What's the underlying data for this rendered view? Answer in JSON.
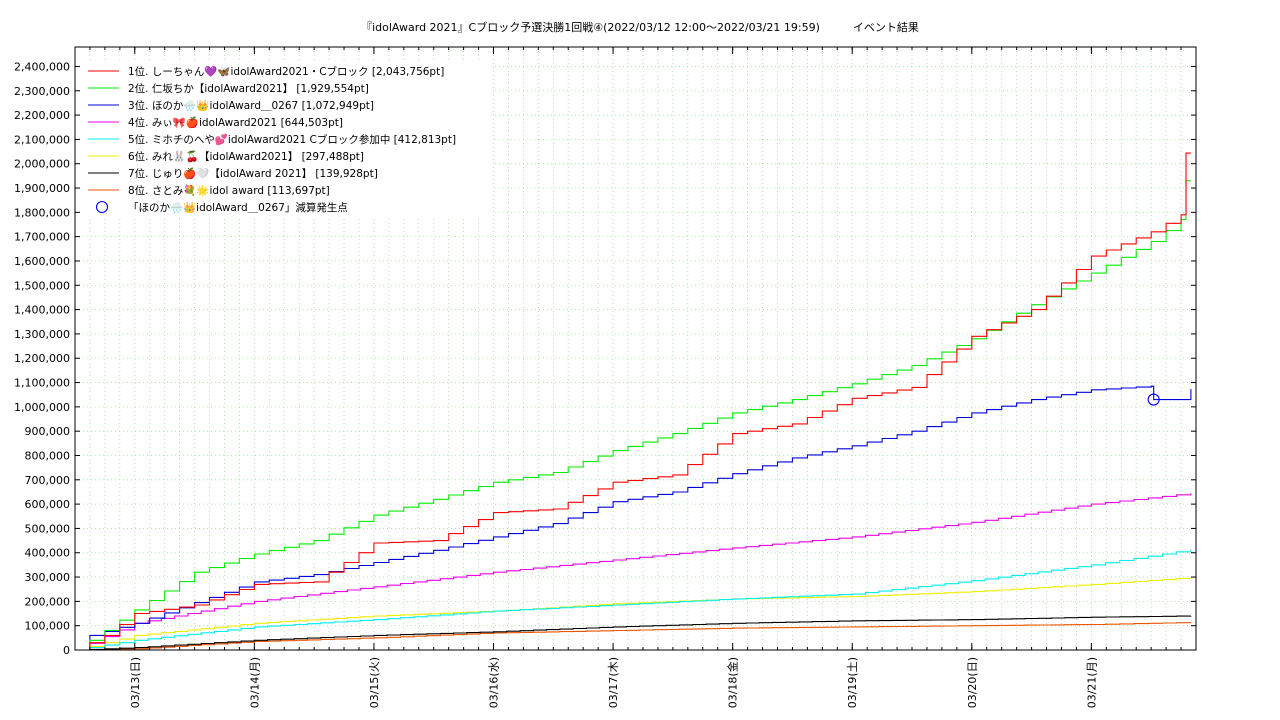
{
  "chart_data": {
    "type": "line",
    "title": "『idolAward 2021』Cブロック予選決勝1回戦④(2022/03/12 12:00～2022/03/21 19:59)　　　イベント結果",
    "xlabel": "",
    "ylabel": "",
    "ylim": [
      0,
      2480000
    ],
    "xlim": [
      "2022-03-12 12:00",
      "2022-03-21 21:00"
    ],
    "grid": true,
    "legend_position": "top-left",
    "x_tick_labels": [
      "03/13(日)",
      "03/14(月)",
      "03/15(火)",
      "03/16(水)",
      "03/17(木)",
      "03/18(金)",
      "03/19(土)",
      "03/20(日)",
      "03/21(月)"
    ],
    "x_tick_dates": [
      "2022-03-13",
      "2022-03-14",
      "2022-03-15",
      "2022-03-16",
      "2022-03-17",
      "2022-03-18",
      "2022-03-19",
      "2022-03-20",
      "2022-03-21"
    ],
    "y_ticks": [
      0,
      100000,
      200000,
      300000,
      400000,
      500000,
      600000,
      700000,
      800000,
      900000,
      1000000,
      1100000,
      1200000,
      1300000,
      1400000,
      1500000,
      1600000,
      1700000,
      1800000,
      1900000,
      2000000,
      2100000,
      2200000,
      2300000,
      2400000
    ],
    "y_tick_labels": [
      "0",
      "100,000",
      "200,000",
      "300,000",
      "400,000",
      "500,000",
      "600,000",
      "700,000",
      "800,000",
      "900,000",
      "1,000,000",
      "1,100,000",
      "1,200,000",
      "1,300,000",
      "1,400,000",
      "1,500,000",
      "1,600,000",
      "1,700,000",
      "1,800,000",
      "1,900,000",
      "2,000,000",
      "2,100,000",
      "2,200,000",
      "2,300,000",
      "2,400,000"
    ],
    "series": [
      {
        "name": "1位. しーちゃん💜🦋idolAward2021・Cブロック [2,043,756pt]",
        "color": "#ff0000",
        "points": [
          [
            "2022-03-12 12:00",
            0
          ],
          [
            "2022-03-12 18:00",
            60000
          ],
          [
            "2022-03-13 00:00",
            150000
          ],
          [
            "2022-03-13 12:00",
            185000
          ],
          [
            "2022-03-14 00:00",
            270000
          ],
          [
            "2022-03-14 12:00",
            280000
          ],
          [
            "2022-03-15 00:00",
            440000
          ],
          [
            "2022-03-15 12:00",
            450000
          ],
          [
            "2022-03-16 00:00",
            565000
          ],
          [
            "2022-03-16 12:00",
            580000
          ],
          [
            "2022-03-17 00:00",
            690000
          ],
          [
            "2022-03-17 12:00",
            720000
          ],
          [
            "2022-03-18 00:00",
            890000
          ],
          [
            "2022-03-18 12:00",
            930000
          ],
          [
            "2022-03-19 00:00",
            1035000
          ],
          [
            "2022-03-19 12:00",
            1080000
          ],
          [
            "2022-03-20 00:00",
            1290000
          ],
          [
            "2022-03-20 12:00",
            1400000
          ],
          [
            "2022-03-21 00:00",
            1620000
          ],
          [
            "2022-03-21 12:00",
            1720000
          ],
          [
            "2022-03-21 18:00",
            1790000
          ],
          [
            "2022-03-21 19:00",
            2043756
          ],
          [
            "2022-03-21 19:59",
            2043756
          ]
        ]
      },
      {
        "name": "2位. 仁坂ちか【idolAward2021】 [1,929,554pt]",
        "color": "#00ee00",
        "points": [
          [
            "2022-03-12 12:00",
            0
          ],
          [
            "2022-03-12 18:00",
            80000
          ],
          [
            "2022-03-13 00:00",
            165000
          ],
          [
            "2022-03-13 12:00",
            320000
          ],
          [
            "2022-03-14 00:00",
            395000
          ],
          [
            "2022-03-14 12:00",
            450000
          ],
          [
            "2022-03-15 00:00",
            555000
          ],
          [
            "2022-03-15 12:00",
            620000
          ],
          [
            "2022-03-16 00:00",
            690000
          ],
          [
            "2022-03-16 12:00",
            730000
          ],
          [
            "2022-03-17 00:00",
            820000
          ],
          [
            "2022-03-17 12:00",
            890000
          ],
          [
            "2022-03-18 00:00",
            975000
          ],
          [
            "2022-03-18 12:00",
            1030000
          ],
          [
            "2022-03-19 00:00",
            1095000
          ],
          [
            "2022-03-19 12:00",
            1170000
          ],
          [
            "2022-03-20 00:00",
            1280000
          ],
          [
            "2022-03-20 12:00",
            1420000
          ],
          [
            "2022-03-21 00:00",
            1550000
          ],
          [
            "2022-03-21 12:00",
            1680000
          ],
          [
            "2022-03-21 18:00",
            1770000
          ],
          [
            "2022-03-21 19:00",
            1929554
          ],
          [
            "2022-03-21 19:59",
            1929554
          ]
        ]
      },
      {
        "name": "3位. ほのか🌧️👑idolAward＿0267 [1,072,949pt]",
        "color": "#0000dd",
        "points": [
          [
            "2022-03-12 12:00",
            0
          ],
          [
            "2022-03-12 15:00",
            60000
          ],
          [
            "2022-03-13 00:00",
            110000
          ],
          [
            "2022-03-13 12:00",
            195000
          ],
          [
            "2022-03-14 00:00",
            280000
          ],
          [
            "2022-03-14 12:00",
            310000
          ],
          [
            "2022-03-15 00:00",
            360000
          ],
          [
            "2022-03-15 12:00",
            410000
          ],
          [
            "2022-03-16 00:00",
            465000
          ],
          [
            "2022-03-16 12:00",
            520000
          ],
          [
            "2022-03-17 00:00",
            610000
          ],
          [
            "2022-03-17 12:00",
            650000
          ],
          [
            "2022-03-18 00:00",
            725000
          ],
          [
            "2022-03-18 12:00",
            790000
          ],
          [
            "2022-03-19 00:00",
            840000
          ],
          [
            "2022-03-19 12:00",
            900000
          ],
          [
            "2022-03-20 00:00",
            975000
          ],
          [
            "2022-03-20 12:00",
            1030000
          ],
          [
            "2022-03-21 00:00",
            1070000
          ],
          [
            "2022-03-21 12:00",
            1085000
          ],
          [
            "2022-03-21 12:30",
            1030000
          ],
          [
            "2022-03-21 17:00",
            1030000
          ],
          [
            "2022-03-21 19:59",
            1072949
          ]
        ]
      },
      {
        "name": "4位. みぃ🎀🍎idolAward2021 [644,503pt]",
        "color": "#ee00ee",
        "points": [
          [
            "2022-03-12 12:00",
            0
          ],
          [
            "2022-03-13 00:00",
            110000
          ],
          [
            "2022-03-14 00:00",
            200000
          ],
          [
            "2022-03-15 00:00",
            260000
          ],
          [
            "2022-03-16 00:00",
            320000
          ],
          [
            "2022-03-17 00:00",
            370000
          ],
          [
            "2022-03-18 00:00",
            420000
          ],
          [
            "2022-03-19 00:00",
            465000
          ],
          [
            "2022-03-20 00:00",
            525000
          ],
          [
            "2022-03-21 00:00",
            600000
          ],
          [
            "2022-03-21 19:59",
            644503
          ]
        ]
      },
      {
        "name": "5位. ミホチのへや💕idolAward2021 Cブロック参加中 [412,813pt]",
        "color": "#00eeee",
        "points": [
          [
            "2022-03-12 12:00",
            0
          ],
          [
            "2022-03-13 00:00",
            40000
          ],
          [
            "2022-03-14 00:00",
            95000
          ],
          [
            "2022-03-15 00:00",
            125000
          ],
          [
            "2022-03-16 00:00",
            160000
          ],
          [
            "2022-03-17 00:00",
            185000
          ],
          [
            "2022-03-18 00:00",
            210000
          ],
          [
            "2022-03-19 00:00",
            230000
          ],
          [
            "2022-03-20 00:00",
            285000
          ],
          [
            "2022-03-21 00:00",
            350000
          ],
          [
            "2022-03-21 19:59",
            412813
          ]
        ]
      },
      {
        "name": "6位. みれ🐰🍒【idolAward2021】 [297,488pt]",
        "color": "#eeee00",
        "points": [
          [
            "2022-03-12 12:00",
            0
          ],
          [
            "2022-03-13 00:00",
            60000
          ],
          [
            "2022-03-14 00:00",
            110000
          ],
          [
            "2022-03-15 00:00",
            140000
          ],
          [
            "2022-03-16 00:00",
            160000
          ],
          [
            "2022-03-17 00:00",
            190000
          ],
          [
            "2022-03-18 00:00",
            210000
          ],
          [
            "2022-03-19 00:00",
            220000
          ],
          [
            "2022-03-20 00:00",
            240000
          ],
          [
            "2022-03-21 00:00",
            270000
          ],
          [
            "2022-03-21 19:59",
            297488
          ]
        ]
      },
      {
        "name": "7位. じゅり🍎🤍【idolAward 2021】 [139,928pt]",
        "color": "#000000",
        "points": [
          [
            "2022-03-12 12:00",
            0
          ],
          [
            "2022-03-13 00:00",
            10000
          ],
          [
            "2022-03-14 00:00",
            40000
          ],
          [
            "2022-03-15 00:00",
            60000
          ],
          [
            "2022-03-16 00:00",
            75000
          ],
          [
            "2022-03-17 00:00",
            95000
          ],
          [
            "2022-03-18 00:00",
            110000
          ],
          [
            "2022-03-19 00:00",
            120000
          ],
          [
            "2022-03-20 00:00",
            125000
          ],
          [
            "2022-03-21 00:00",
            135000
          ],
          [
            "2022-03-21 19:59",
            139928
          ]
        ]
      },
      {
        "name": "8位. さとみ💐🌟idol award [113,697pt]",
        "color": "#ee5500",
        "points": [
          [
            "2022-03-12 12:00",
            0
          ],
          [
            "2022-03-13 00:00",
            5000
          ],
          [
            "2022-03-14 00:00",
            35000
          ],
          [
            "2022-03-15 00:00",
            50000
          ],
          [
            "2022-03-16 00:00",
            70000
          ],
          [
            "2022-03-17 00:00",
            80000
          ],
          [
            "2022-03-18 00:00",
            90000
          ],
          [
            "2022-03-19 00:00",
            95000
          ],
          [
            "2022-03-20 00:00",
            100000
          ],
          [
            "2022-03-21 00:00",
            105000
          ],
          [
            "2022-03-21 19:59",
            113697
          ]
        ]
      }
    ],
    "annotations": [
      {
        "name": "「ほのか🌧️👑idolAward＿0267」減算発生点",
        "marker": "circle",
        "color": "#0000ff",
        "x": "2022-03-21 12:30",
        "y": 1030000
      }
    ]
  }
}
